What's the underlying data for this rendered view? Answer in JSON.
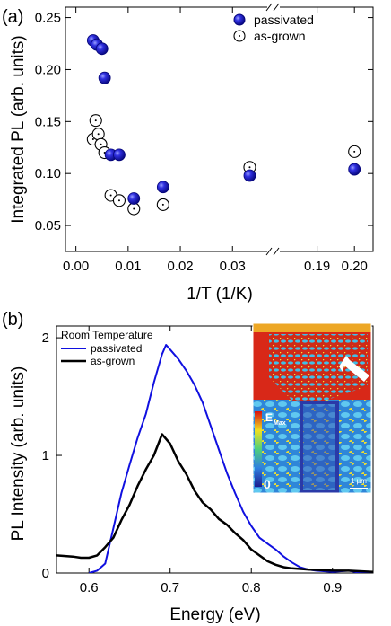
{
  "chart_data": [
    {
      "panel": "(a)",
      "type": "scatter",
      "xlabel": "1/T (1/K)",
      "ylabel": "Integrated PL (arb. units)",
      "ylim": [
        0.025,
        0.26
      ],
      "x_break": {
        "left_range": [
          -0.002,
          0.037
        ],
        "right_range": [
          0.18,
          0.205
        ]
      },
      "x_ticks": [
        "0.00",
        "0.01",
        "0.02",
        "0.03",
        "0.19",
        "0.20"
      ],
      "y_ticks": [
        "0.05",
        "0.10",
        "0.15",
        "0.20",
        "0.25"
      ],
      "legend_position": "top-right",
      "series": [
        {
          "name": "passivated",
          "marker": "filled-blue",
          "points": [
            {
              "x": 0.0033,
              "y": 0.228
            },
            {
              "x": 0.004,
              "y": 0.224
            },
            {
              "x": 0.005,
              "y": 0.22
            },
            {
              "x": 0.0055,
              "y": 0.192
            },
            {
              "x": 0.0067,
              "y": 0.118
            },
            {
              "x": 0.0083,
              "y": 0.118
            },
            {
              "x": 0.0111,
              "y": 0.076
            },
            {
              "x": 0.0167,
              "y": 0.087
            },
            {
              "x": 0.0333,
              "y": 0.098
            },
            {
              "x": 0.2,
              "y": 0.104
            }
          ]
        },
        {
          "name": "as-grown",
          "marker": "open-dotted",
          "points": [
            {
              "x": 0.0033,
              "y": 0.133
            },
            {
              "x": 0.0038,
              "y": 0.151
            },
            {
              "x": 0.0043,
              "y": 0.138
            },
            {
              "x": 0.0048,
              "y": 0.128
            },
            {
              "x": 0.0055,
              "y": 0.12
            },
            {
              "x": 0.0067,
              "y": 0.079
            },
            {
              "x": 0.0083,
              "y": 0.074
            },
            {
              "x": 0.0111,
              "y": 0.066
            },
            {
              "x": 0.0167,
              "y": 0.07
            },
            {
              "x": 0.0333,
              "y": 0.106
            },
            {
              "x": 0.2,
              "y": 0.121
            }
          ]
        }
      ],
      "colors": {
        "passivated": "#1a1ad0",
        "as-grown": "#000000"
      }
    },
    {
      "panel": "(b)",
      "type": "line",
      "xlabel": "Energy (eV)",
      "ylabel": "PL Intensity (arb. units)",
      "xlim": [
        0.56,
        0.95
      ],
      "ylim": [
        0,
        2.1
      ],
      "x_ticks": [
        "0.6",
        "0.7",
        "0.8",
        "0.9"
      ],
      "y_ticks": [
        "0",
        "1",
        "2"
      ],
      "legend_title": "Room Temperature",
      "legend_position": "top-left",
      "series": [
        {
          "name": "passivated",
          "color": "#1010e0",
          "points": [
            [
              0.6,
              0.0
            ],
            [
              0.61,
              0.02
            ],
            [
              0.62,
              0.08
            ],
            [
              0.63,
              0.38
            ],
            [
              0.64,
              0.68
            ],
            [
              0.65,
              0.92
            ],
            [
              0.66,
              1.15
            ],
            [
              0.67,
              1.35
            ],
            [
              0.68,
              1.62
            ],
            [
              0.69,
              1.86
            ],
            [
              0.695,
              1.94
            ],
            [
              0.7,
              1.9
            ],
            [
              0.71,
              1.82
            ],
            [
              0.72,
              1.72
            ],
            [
              0.73,
              1.6
            ],
            [
              0.74,
              1.45
            ],
            [
              0.75,
              1.25
            ],
            [
              0.76,
              1.05
            ],
            [
              0.77,
              0.85
            ],
            [
              0.78,
              0.68
            ],
            [
              0.79,
              0.52
            ],
            [
              0.8,
              0.4
            ],
            [
              0.81,
              0.3
            ],
            [
              0.82,
              0.25
            ],
            [
              0.83,
              0.2
            ],
            [
              0.84,
              0.14
            ],
            [
              0.85,
              0.09
            ],
            [
              0.86,
              0.05
            ],
            [
              0.87,
              0.03
            ],
            [
              0.88,
              0.02
            ],
            [
              0.9,
              0.01
            ],
            [
              0.92,
              0.02
            ],
            [
              0.935,
              0.0
            ],
            [
              0.95,
              0.01
            ]
          ]
        },
        {
          "name": "as-grown",
          "color": "#000000",
          "points": [
            [
              0.56,
              0.15
            ],
            [
              0.58,
              0.14
            ],
            [
              0.59,
              0.13
            ],
            [
              0.6,
              0.13
            ],
            [
              0.61,
              0.15
            ],
            [
              0.62,
              0.22
            ],
            [
              0.63,
              0.3
            ],
            [
              0.64,
              0.45
            ],
            [
              0.65,
              0.58
            ],
            [
              0.66,
              0.74
            ],
            [
              0.67,
              0.88
            ],
            [
              0.68,
              1.0
            ],
            [
              0.69,
              1.18
            ],
            [
              0.7,
              1.1
            ],
            [
              0.71,
              0.95
            ],
            [
              0.72,
              0.84
            ],
            [
              0.73,
              0.7
            ],
            [
              0.74,
              0.6
            ],
            [
              0.75,
              0.54
            ],
            [
              0.76,
              0.46
            ],
            [
              0.77,
              0.41
            ],
            [
              0.78,
              0.34
            ],
            [
              0.79,
              0.28
            ],
            [
              0.8,
              0.2
            ],
            [
              0.81,
              0.15
            ],
            [
              0.82,
              0.1
            ],
            [
              0.83,
              0.07
            ],
            [
              0.84,
              0.05
            ],
            [
              0.85,
              0.04
            ],
            [
              0.87,
              0.03
            ],
            [
              0.9,
              0.02
            ],
            [
              0.92,
              0.02
            ],
            [
              0.95,
              0.01
            ]
          ]
        }
      ],
      "inset": {
        "colorbar_max_label": "E",
        "colorbar_max_sub": "Max",
        "colorbar_min_label": "0",
        "scale_bar_label": "1 µm"
      }
    }
  ]
}
